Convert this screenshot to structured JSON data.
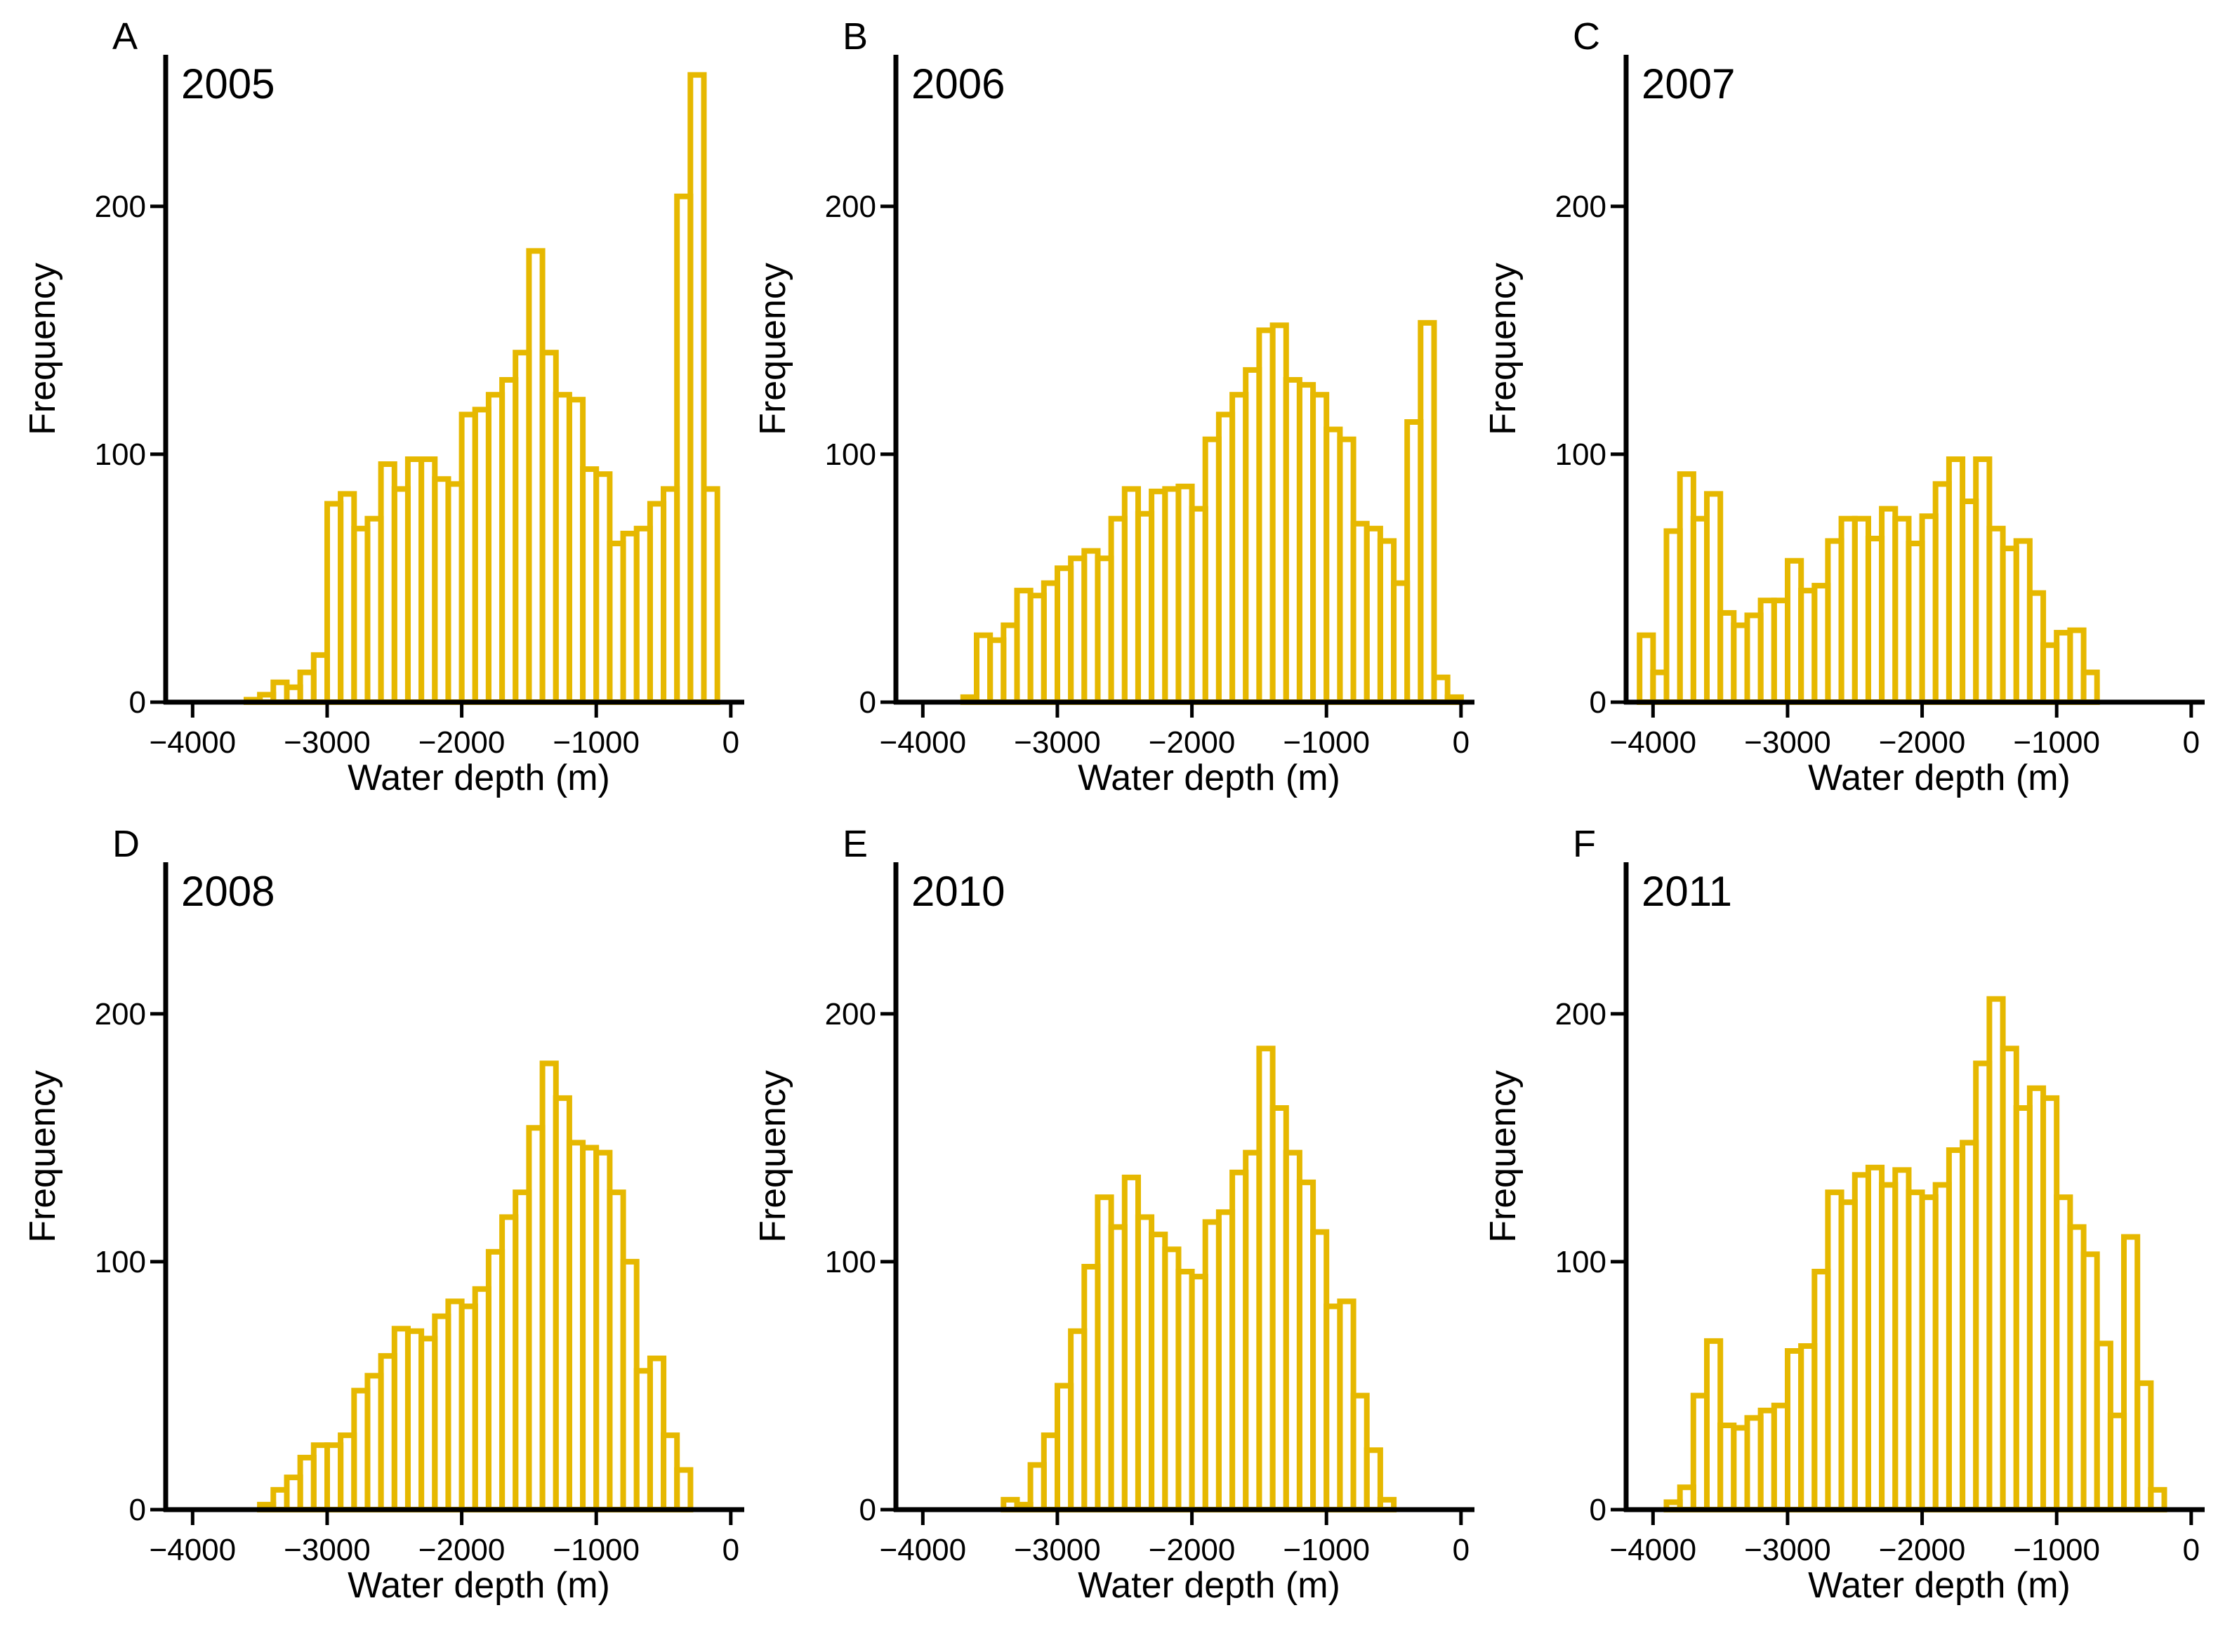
{
  "figure": {
    "bar_color": "#E6B800",
    "axis_color": "#000000"
  },
  "chart_data": [
    {
      "type": "bar",
      "panel_letter": "A",
      "title": "2005",
      "xlabel": "Water depth (m)",
      "ylabel": "Frequency",
      "xlim": [
        -4200,
        100
      ],
      "ylim": [
        0,
        260
      ],
      "xticks": [
        -4000,
        -3000,
        -2000,
        -1000,
        0
      ],
      "xtick_labels": [
        "−4000",
        "−3000",
        "−2000",
        "−1000",
        "0"
      ],
      "yticks": [
        0,
        100,
        200
      ],
      "ytick_labels": [
        "0",
        "100",
        "200"
      ],
      "bin_start": -3600,
      "bin_width": 100,
      "values": [
        1,
        3,
        8,
        6,
        12,
        19,
        80,
        84,
        70,
        74,
        96,
        86,
        98,
        98,
        90,
        88,
        116,
        118,
        124,
        130,
        141,
        182,
        141,
        124,
        122,
        94,
        92,
        64,
        68,
        70,
        80,
        86,
        204,
        253,
        86
      ]
    },
    {
      "type": "bar",
      "panel_letter": "B",
      "title": "2006",
      "xlabel": "Water depth (m)",
      "ylabel": "Frequency",
      "xlim": [
        -4200,
        100
      ],
      "ylim": [
        0,
        260
      ],
      "xticks": [
        -4000,
        -3000,
        -2000,
        -1000,
        0
      ],
      "xtick_labels": [
        "−4000",
        "−3000",
        "−2000",
        "−1000",
        "0"
      ],
      "yticks": [
        0,
        100,
        200
      ],
      "ytick_labels": [
        "0",
        "100",
        "200"
      ],
      "bin_start": -3700,
      "bin_width": 100,
      "values": [
        2,
        27,
        25,
        31,
        45,
        43,
        48,
        54,
        58,
        61,
        58,
        74,
        86,
        76,
        85,
        86,
        87,
        78,
        106,
        116,
        124,
        134,
        150,
        152,
        130,
        128,
        124,
        110,
        106,
        72,
        70,
        65,
        48,
        113,
        153,
        10,
        2
      ]
    },
    {
      "type": "bar",
      "panel_letter": "C",
      "title": "2007",
      "xlabel": "Water depth (m)",
      "ylabel": "Frequency",
      "xlim": [
        -4200,
        100
      ],
      "ylim": [
        0,
        260
      ],
      "xticks": [
        -4000,
        -3000,
        -2000,
        -1000,
        0
      ],
      "xtick_labels": [
        "−4000",
        "−3000",
        "−2000",
        "−1000",
        "0"
      ],
      "yticks": [
        0,
        100,
        200
      ],
      "ytick_labels": [
        "0",
        "100",
        "200"
      ],
      "bin_start": -4100,
      "bin_width": 100,
      "values": [
        27,
        12,
        69,
        92,
        74,
        84,
        36,
        31,
        35,
        41,
        41,
        57,
        45,
        47,
        65,
        74,
        74,
        66,
        78,
        74,
        64,
        75,
        88,
        98,
        81,
        98,
        70,
        62,
        65,
        44,
        23,
        28,
        29,
        12
      ]
    },
    {
      "type": "bar",
      "panel_letter": "D",
      "title": "2008",
      "xlabel": "Water depth (m)",
      "ylabel": "Frequency",
      "xlim": [
        -4200,
        100
      ],
      "ylim": [
        0,
        260
      ],
      "xticks": [
        -4000,
        -3000,
        -2000,
        -1000,
        0
      ],
      "xtick_labels": [
        "−4000",
        "−3000",
        "−2000",
        "−1000",
        "0"
      ],
      "yticks": [
        0,
        100,
        200
      ],
      "ytick_labels": [
        "0",
        "100",
        "200"
      ],
      "bin_start": -3500,
      "bin_width": 100,
      "values": [
        2,
        8,
        13,
        21,
        26,
        26,
        30,
        48,
        54,
        62,
        73,
        72,
        69,
        78,
        84,
        82,
        89,
        104,
        118,
        128,
        154,
        180,
        166,
        148,
        146,
        144,
        128,
        100,
        56,
        61,
        30,
        16
      ]
    },
    {
      "type": "bar",
      "panel_letter": "E",
      "title": "2010",
      "xlabel": "Water depth (m)",
      "ylabel": "Frequency",
      "xlim": [
        -4200,
        100
      ],
      "ylim": [
        0,
        260
      ],
      "xticks": [
        -4000,
        -3000,
        -2000,
        -1000,
        0
      ],
      "xtick_labels": [
        "−4000",
        "−3000",
        "−2000",
        "−1000",
        "0"
      ],
      "yticks": [
        0,
        100,
        200
      ],
      "ytick_labels": [
        "0",
        "100",
        "200"
      ],
      "bin_start": -3400,
      "bin_width": 100,
      "values": [
        4,
        2,
        18,
        30,
        50,
        72,
        98,
        126,
        114,
        134,
        118,
        111,
        105,
        96,
        94,
        116,
        120,
        136,
        144,
        186,
        162,
        144,
        132,
        112,
        82,
        84,
        46,
        24,
        4
      ]
    },
    {
      "type": "bar",
      "panel_letter": "F",
      "title": "2011",
      "xlabel": "Water depth (m)",
      "ylabel": "Frequency",
      "xlim": [
        -4200,
        100
      ],
      "ylim": [
        0,
        260
      ],
      "xticks": [
        -4000,
        -3000,
        -2000,
        -1000,
        0
      ],
      "xtick_labels": [
        "−4000",
        "−3000",
        "−2000",
        "−1000",
        "0"
      ],
      "yticks": [
        0,
        100,
        200
      ],
      "ytick_labels": [
        "0",
        "100",
        "200"
      ],
      "bin_start": -3900,
      "bin_width": 100,
      "values": [
        3,
        9,
        46,
        68,
        34,
        33,
        37,
        40,
        42,
        64,
        66,
        96,
        128,
        124,
        135,
        138,
        131,
        137,
        128,
        126,
        131,
        145,
        148,
        180,
        206,
        186,
        162,
        170,
        166,
        126,
        114,
        103,
        67,
        38,
        110,
        51,
        8
      ]
    }
  ]
}
